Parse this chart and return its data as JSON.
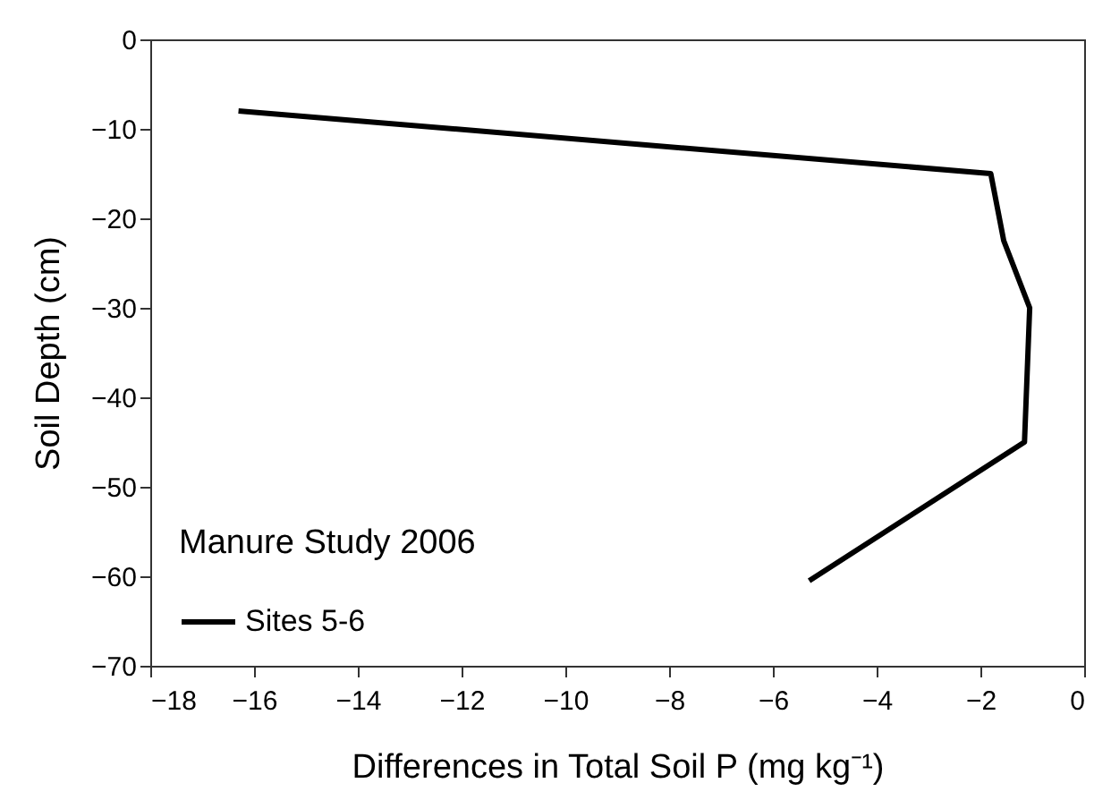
{
  "chart_data": {
    "type": "line",
    "xlabel": "Differences in Total Soil P (mg kg⁻¹)",
    "ylabel": "Soil Depth (cm)",
    "legend_title": "Manure Study 2006",
    "x": [
      -16.3,
      -1.8,
      -1.55,
      -1.05,
      -1.15,
      -5.3
    ],
    "series": [
      {
        "name": "Sites 5-6",
        "color": "#000000",
        "values": [
          -8,
          -15,
          -22.5,
          -30,
          -45,
          -60.5
        ]
      }
    ],
    "xlim": [
      -18,
      0
    ],
    "xticks": [
      -18,
      -16,
      -14,
      -12,
      -10,
      -8,
      -6,
      -4,
      -2,
      0
    ],
    "ylim": [
      -70,
      0
    ],
    "yticks": [
      -70,
      -60,
      -50,
      -40,
      -30,
      -20,
      -10,
      0
    ],
    "grid": false,
    "legend": "bottom left",
    "marker": "none",
    "line_style": "solid"
  }
}
